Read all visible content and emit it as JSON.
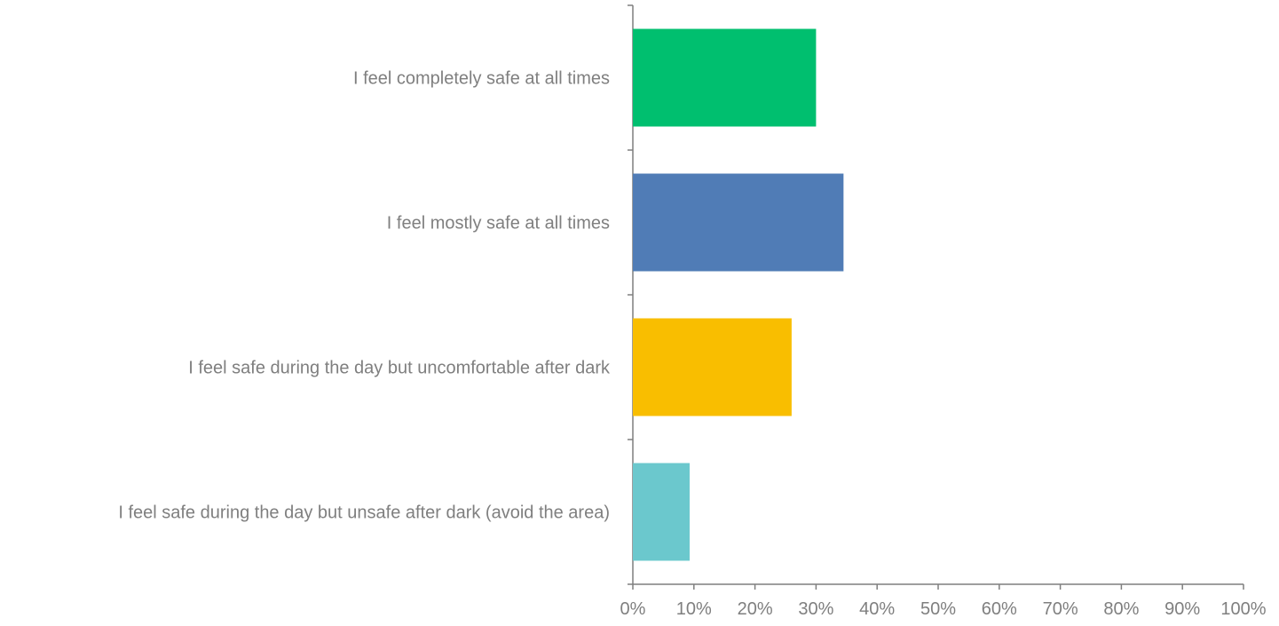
{
  "chart_data": {
    "type": "bar",
    "orientation": "horizontal",
    "title": "",
    "xlabel": "",
    "ylabel": "",
    "categories": [
      "I feel completely safe at all times",
      "I feel mostly safe at all times",
      "I feel safe during the day but uncomfortable after dark",
      "I feel safe during the day but unsafe after dark (avoid the area)"
    ],
    "values": [
      30,
      34.5,
      26,
      9.3
    ],
    "colors": [
      "#00bf6f",
      "#507cb6",
      "#f9be00",
      "#6bc8cd"
    ],
    "xlim": [
      0,
      100
    ],
    "x_ticks": [
      0,
      10,
      20,
      30,
      40,
      50,
      60,
      70,
      80,
      90,
      100
    ],
    "x_tick_labels": [
      "0%",
      "10%",
      "20%",
      "30%",
      "40%",
      "50%",
      "60%",
      "70%",
      "80%",
      "90%",
      "100%"
    ],
    "grid": false,
    "legend": "none",
    "axis_color": "#7f7f7f",
    "label_color": "#7f7f7f"
  }
}
